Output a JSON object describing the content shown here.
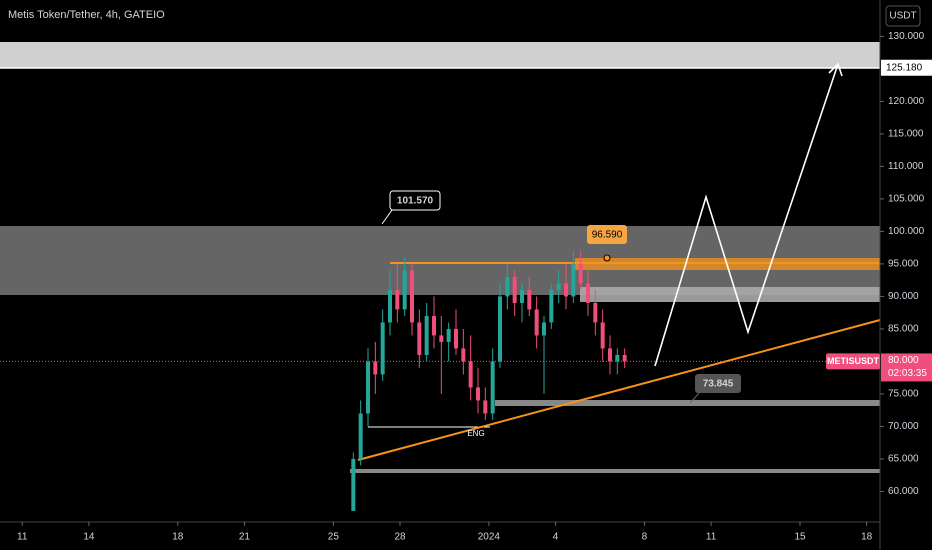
{
  "chart_data": {
    "type": "candlestick",
    "title": "Metis Token/Tether, 4h, GATEIO",
    "currency": "USDT",
    "up_color": "#26a69a",
    "down_color": "#ef4f7a",
    "x": [
      25.9,
      26.23,
      26.56,
      26.89,
      27.22,
      27.55,
      27.88,
      28.21,
      28.54,
      28.87,
      29.2,
      29.53,
      29.86,
      30.19,
      30.52,
      30.85,
      31.18,
      31.51,
      31.84,
      32.17,
      32.5,
      32.83,
      33.16,
      33.49,
      33.82,
      34.15,
      34.48,
      34.81,
      35.14,
      35.47,
      35.8,
      36.13,
      36.46,
      36.79,
      37.12,
      37.45,
      37.78,
      38.11
    ],
    "open": [
      57,
      65,
      72,
      80,
      78,
      86,
      91,
      88,
      94,
      86,
      81,
      87,
      84,
      83,
      85,
      82,
      80,
      76,
      74,
      72,
      80,
      90,
      93,
      89,
      91,
      88,
      84,
      86,
      91,
      92,
      90,
      95,
      92,
      89,
      86,
      82,
      80,
      81
    ],
    "high": [
      66,
      74,
      82,
      83,
      88,
      94,
      95,
      96,
      95,
      88,
      89,
      90,
      87,
      86,
      88,
      85,
      84,
      79,
      76,
      82,
      92,
      95,
      94,
      92,
      93,
      90,
      87,
      92,
      94,
      95,
      97,
      97,
      94,
      91,
      88,
      84,
      82,
      82
    ],
    "low": [
      57,
      64,
      70,
      75,
      77,
      84,
      86,
      87,
      84,
      79,
      80,
      82,
      75,
      80,
      81,
      78,
      74,
      72,
      71,
      71,
      79,
      88,
      87,
      86,
      87,
      82,
      75,
      85,
      89,
      88,
      89,
      91,
      87,
      84,
      80,
      78,
      78,
      79
    ],
    "close": [
      65,
      72,
      80,
      78,
      86,
      91,
      88,
      94,
      86,
      81,
      87,
      84,
      83,
      85,
      82,
      80,
      76,
      74,
      72,
      80,
      90,
      93,
      89,
      91,
      88,
      84,
      86,
      91,
      92,
      90,
      95,
      92,
      89,
      86,
      82,
      80,
      81,
      80
    ],
    "xlim": [
      10,
      49.6
    ],
    "ylim": [
      55.3,
      135.6
    ],
    "xticks": [
      11,
      14,
      18,
      21,
      25,
      28,
      {
        "value": 32,
        "label": "2024"
      },
      {
        "value": 35,
        "label": "4"
      },
      {
        "value": 39,
        "label": "8"
      },
      {
        "value": 42,
        "label": "11"
      },
      {
        "value": 46,
        "label": "15"
      },
      {
        "value": 49,
        "label": "18"
      }
    ],
    "yticks": [
      {
        "value": 130,
        "label": "130.000"
      },
      {
        "value": 120,
        "label": "120.000"
      },
      {
        "value": 115,
        "label": "115.000"
      },
      {
        "value": 110,
        "label": "110.000"
      },
      {
        "value": 105,
        "label": "105.000"
      },
      {
        "value": 100,
        "label": "100.000"
      },
      {
        "value": 95,
        "label": "95.000"
      },
      {
        "value": 90,
        "label": "90.000"
      },
      {
        "value": 85,
        "label": "85.000"
      },
      {
        "value": 75,
        "label": "75.000"
      },
      {
        "value": 70,
        "label": "70.000"
      },
      {
        "value": 65,
        "label": "65.000"
      },
      {
        "value": 60,
        "label": "60.000"
      }
    ],
    "last_price": {
      "symbol": "METISUSDT",
      "value": 80,
      "label": "80.000",
      "countdown": "02:03:35"
    },
    "target": {
      "value": 125.18,
      "label": "125.180"
    },
    "annotations": {
      "high_label": "101.570",
      "level_label": "96.590",
      "support_label": "73.845",
      "pattern": "ENG"
    }
  }
}
